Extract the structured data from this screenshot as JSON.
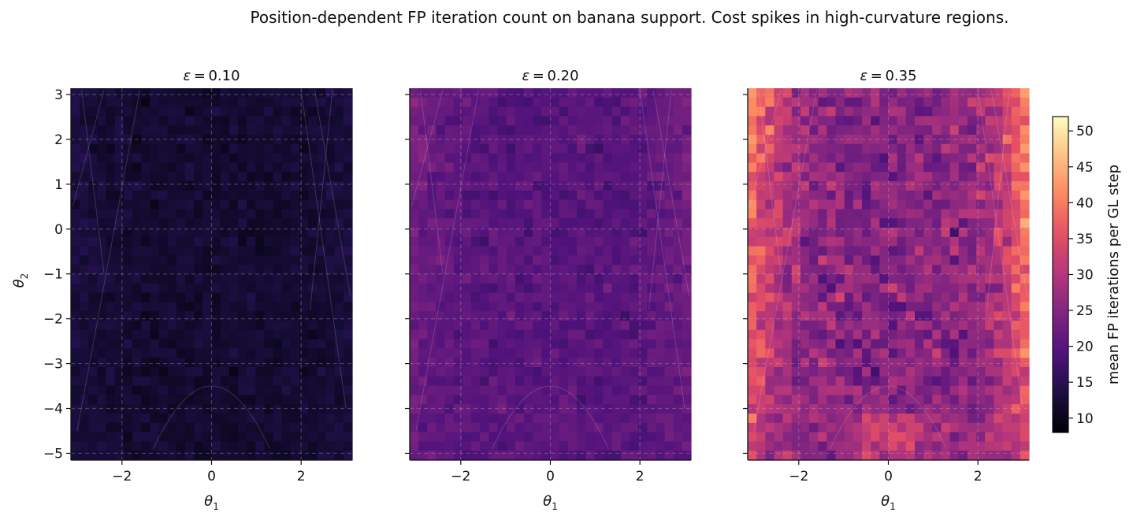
{
  "suptitle": "Position-dependent FP iteration count on banana support. Cost spikes in high-curvature regions.",
  "colormap": "magma",
  "colorbar": {
    "label": "mean FP iterations per GL step",
    "range": [
      8,
      52
    ],
    "ticks": [
      10,
      15,
      20,
      25,
      30,
      35,
      40,
      45,
      50
    ]
  },
  "chart_data": [
    {
      "type": "heatmap",
      "title_symbol": "ε",
      "title_value": "= 0.10",
      "xlabel_base": "θ",
      "xlabel_sub": "1",
      "ylabel_base": "θ",
      "ylabel_sub": "2",
      "xlim": [
        -3.14,
        3.14
      ],
      "ylim": [
        -5.15,
        3.14
      ],
      "xticks": [
        -2,
        0,
        2
      ],
      "yticks": [
        3,
        2,
        1,
        0,
        -1,
        -2,
        -3,
        -4,
        -5
      ],
      "grid": {
        "nx": 32,
        "ny": 40
      },
      "value_model": {
        "mean": 12,
        "noise": 1.2,
        "edge_boost": 1.5,
        "arch_boost": 0
      },
      "grid_lines": true
    },
    {
      "type": "heatmap",
      "title_symbol": "ε",
      "title_value": "= 0.20",
      "xlabel_base": "θ",
      "xlabel_sub": "1",
      "xlim": [
        -3.14,
        3.14
      ],
      "ylim": [
        -5.15,
        3.14
      ],
      "xticks": [
        -2,
        0,
        2
      ],
      "yticks": [
        3,
        2,
        1,
        0,
        -1,
        -2,
        -3,
        -4,
        -5
      ],
      "grid": {
        "nx": 32,
        "ny": 40
      },
      "value_model": {
        "mean": 20,
        "noise": 1.8,
        "edge_boost": 4,
        "arch_boost": 1
      },
      "grid_lines": true
    },
    {
      "type": "heatmap",
      "title_symbol": "ε",
      "title_value": "= 0.35",
      "xlabel_base": "θ",
      "xlabel_sub": "1",
      "xlim": [
        -3.14,
        3.14
      ],
      "ylim": [
        -5.15,
        3.14
      ],
      "xticks": [
        -2,
        0,
        2
      ],
      "yticks": [
        3,
        2,
        1,
        0,
        -1,
        -2,
        -3,
        -4,
        -5
      ],
      "grid": {
        "nx": 32,
        "ny": 40
      },
      "value_model": {
        "mean": 25,
        "noise": 4,
        "edge_boost": 18,
        "arch_boost": 7
      },
      "grid_lines": true
    }
  ]
}
